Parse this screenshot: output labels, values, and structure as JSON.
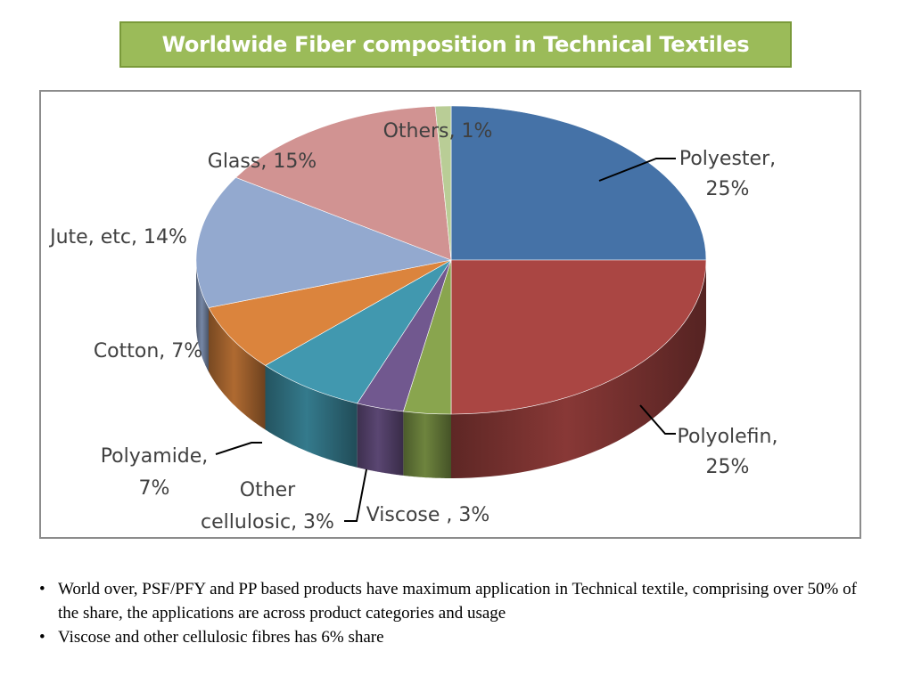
{
  "slide": {
    "title": "Worldwide Fiber composition in Technical Textiles",
    "bullets": [
      "World over, PSF/PFY and PP based products have maximum application in Technical textile, comprising over 50% of the share, the applications are across product categories and usage",
      "Viscose and other cellulosic fibres has 6% share"
    ],
    "bullet_symbol": "•"
  },
  "chart_data": {
    "type": "pie",
    "title": "",
    "style": "3d-pie",
    "slices": [
      {
        "name": "Polyester",
        "value": 25,
        "label": [
          "Polyester,",
          "25%"
        ],
        "color": "#4572a7"
      },
      {
        "name": "Polyolefin",
        "value": 25,
        "label": [
          "Polyolefin,",
          "25%"
        ],
        "color": "#aa4643"
      },
      {
        "name": "Viscose",
        "value": 3,
        "label": [
          "Viscose , 3%"
        ],
        "color": "#89a54e"
      },
      {
        "name": "Other cellulosic",
        "value": 3,
        "label": [
          "Other",
          "cellulosic, 3%"
        ],
        "color": "#71588f"
      },
      {
        "name": "Polyamide",
        "value": 7,
        "label": [
          "Polyamide,",
          "7%"
        ],
        "color": "#4198af"
      },
      {
        "name": "Cotton",
        "value": 7,
        "label": [
          "Cotton, 7%"
        ],
        "color": "#db843d"
      },
      {
        "name": "Jute, etc",
        "value": 14,
        "label": [
          "Jute, etc, 14%"
        ],
        "color": "#93a9cf"
      },
      {
        "name": "Glass",
        "value": 15,
        "label": [
          "Glass, 15%"
        ],
        "color": "#d19392"
      },
      {
        "name": "Others",
        "value": 1,
        "label": [
          "Others, 1%"
        ],
        "color": "#b9cd96"
      }
    ],
    "legend": "none"
  }
}
